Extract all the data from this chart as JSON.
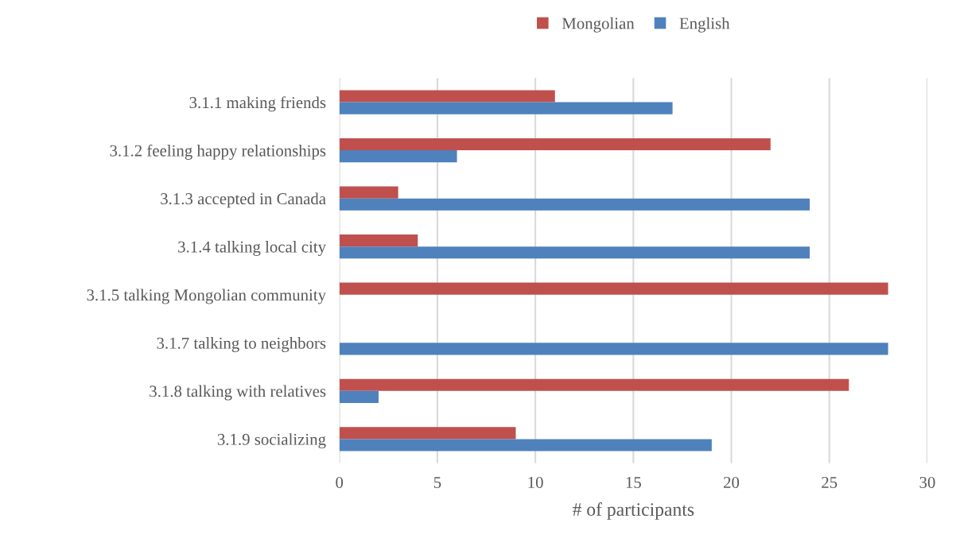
{
  "chart_data": {
    "type": "bar",
    "orientation": "horizontal",
    "xlabel": "# of participants",
    "categories": [
      "3.1.1 making friends",
      "3.1.2 feeling happy relationships",
      "3.1.3 accepted in Canada",
      "3.1.4 talking local city",
      "3.1.5 talking Mongolian community",
      "3.1.7 talking to neighbors",
      "3.1.8 talking with relatives",
      "3.1.9 socializing"
    ],
    "series": [
      {
        "name": "Mongolian",
        "color": "#c0504d",
        "values": [
          11,
          22,
          3,
          4,
          28,
          0,
          26,
          9
        ]
      },
      {
        "name": "English",
        "color": "#4f81bd",
        "values": [
          17,
          6,
          24,
          24,
          0,
          28,
          2,
          19
        ]
      }
    ],
    "xlim": [
      0,
      30
    ],
    "xticks": [
      0,
      5,
      10,
      15,
      20,
      25,
      30
    ],
    "grid": "x",
    "legend": "top"
  }
}
